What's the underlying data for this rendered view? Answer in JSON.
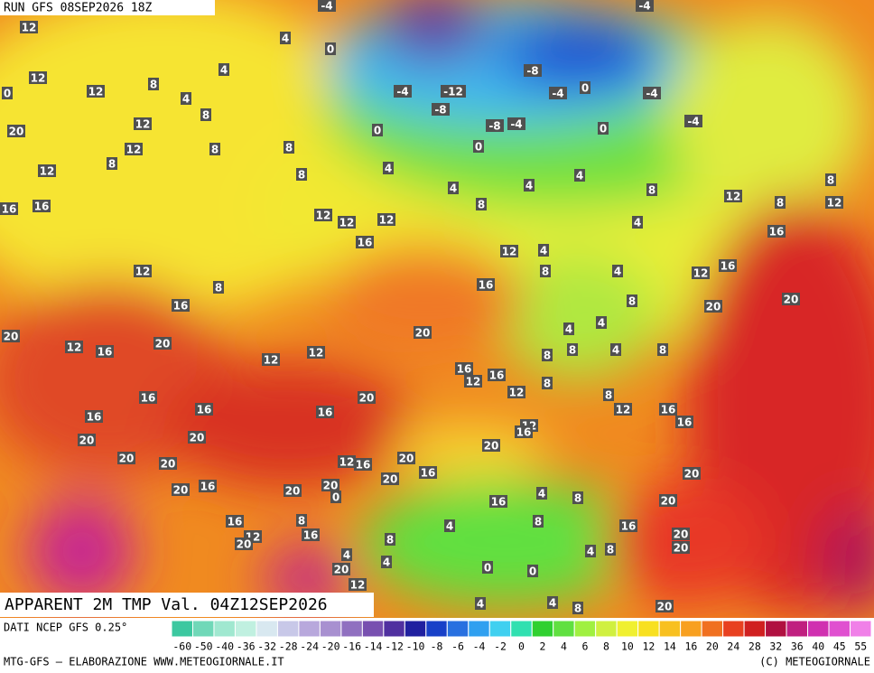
{
  "header": {
    "run": "RUN GFS 08SEP2026 18Z",
    "title": "APPARENT 2M TMP Val. 04Z12SEP2026"
  },
  "map_labels": [
    -4,
    -4,
    12,
    4,
    0,
    -8,
    12,
    8,
    4,
    -4,
    -12,
    -4,
    0,
    -4,
    -8,
    0,
    12,
    4,
    8,
    12,
    20,
    0,
    -8,
    -4,
    0,
    -4,
    0,
    12,
    8,
    8,
    8,
    12,
    4,
    8,
    4,
    4,
    4,
    8,
    8,
    16,
    16,
    12,
    12,
    12,
    8,
    4,
    12,
    12,
    8,
    16,
    12,
    4,
    16,
    12,
    8,
    8,
    4,
    12,
    16,
    16,
    16,
    20,
    20,
    8,
    20,
    4,
    4,
    20,
    12,
    16,
    20,
    12,
    12,
    8,
    8,
    4,
    8,
    16,
    16,
    12,
    12,
    8,
    16,
    20,
    8,
    12,
    16,
    16,
    16,
    16,
    16,
    12,
    16,
    20,
    20,
    20,
    20,
    20,
    20,
    12,
    16,
    16,
    20,
    20,
    16,
    20,
    20,
    20,
    0,
    4,
    8,
    16,
    20,
    16,
    8,
    4,
    8,
    16,
    16,
    12,
    20,
    8,
    20,
    20,
    4,
    4,
    4,
    8,
    20,
    0,
    0,
    12,
    4,
    4,
    8,
    20
  ],
  "legend": {
    "source": "DATI NCEP GFS 0.25°",
    "ticks": [
      -60,
      -50,
      -40,
      -36,
      -32,
      -28,
      -24,
      -20,
      -16,
      -14,
      -12,
      -10,
      -8,
      -6,
      -4,
      -2,
      0,
      2,
      4,
      6,
      8,
      10,
      12,
      14,
      16,
      20,
      24,
      28,
      32,
      36,
      40,
      45,
      55
    ],
    "colors": [
      "#3cc8a0",
      "#70d8b8",
      "#a0e8d0",
      "#c0f0e0",
      "#d8e8f0",
      "#c8c8e8",
      "#b8a8dc",
      "#a890d0",
      "#9070c0",
      "#7850b0",
      "#5030a0",
      "#2020a0",
      "#1840c8",
      "#2870e0",
      "#30a0f0",
      "#40d0f0",
      "#30e0b0",
      "#30d030",
      "#60e040",
      "#a0f040",
      "#d0f040",
      "#f0f030",
      "#f8e020",
      "#f8c020",
      "#f8a020",
      "#f07020",
      "#e84020",
      "#d02020",
      "#b01040",
      "#c02080",
      "#d030b0",
      "#e050d0",
      "#f080e8"
    ]
  },
  "footer": {
    "left": "MTG-GFS — ELABORAZIONE WWW.METEOGIORNALE.IT",
    "right": "(C) METEOGIORNALE"
  }
}
